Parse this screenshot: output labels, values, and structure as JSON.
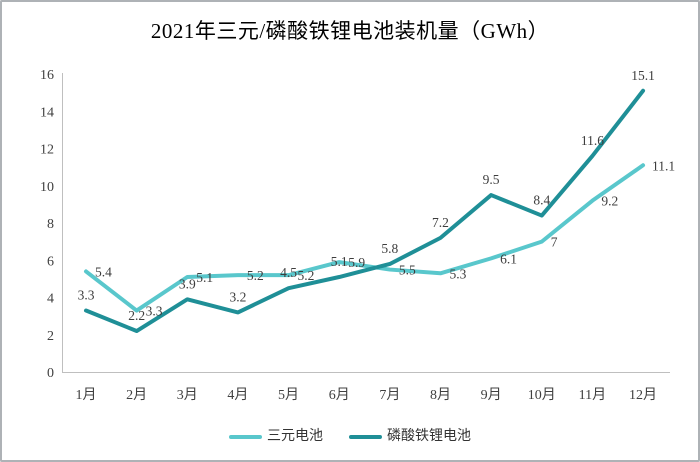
{
  "chart_data": {
    "type": "line",
    "title": "2021年三元/磷酸铁锂电池装机量（GWh）",
    "categories": [
      "1月",
      "2月",
      "3月",
      "4月",
      "5月",
      "6月",
      "7月",
      "8月",
      "9月",
      "10月",
      "11月",
      "12月"
    ],
    "series": [
      {
        "name": "三元电池",
        "color": "#59C7CC",
        "label_position": "right",
        "values": [
          5.4,
          3.3,
          5.1,
          5.2,
          5.2,
          5.9,
          5.5,
          5.3,
          6.1,
          7,
          9.2,
          11.1
        ]
      },
      {
        "name": "磷酸铁锂电池",
        "color": "#1F8F97",
        "label_position": "above",
        "values": [
          3.3,
          2.2,
          3.9,
          3.2,
          4.5,
          5.1,
          5.8,
          7.2,
          9.5,
          8.4,
          11.6,
          15.1
        ]
      }
    ],
    "xlabel": "",
    "ylabel": "",
    "ylim": [
      0,
      16
    ],
    "ytick_step": 2,
    "grid": false,
    "data_labels": true,
    "legend_position": "bottom",
    "axis_color": "#bfbfbf",
    "text_color": "#404040"
  }
}
